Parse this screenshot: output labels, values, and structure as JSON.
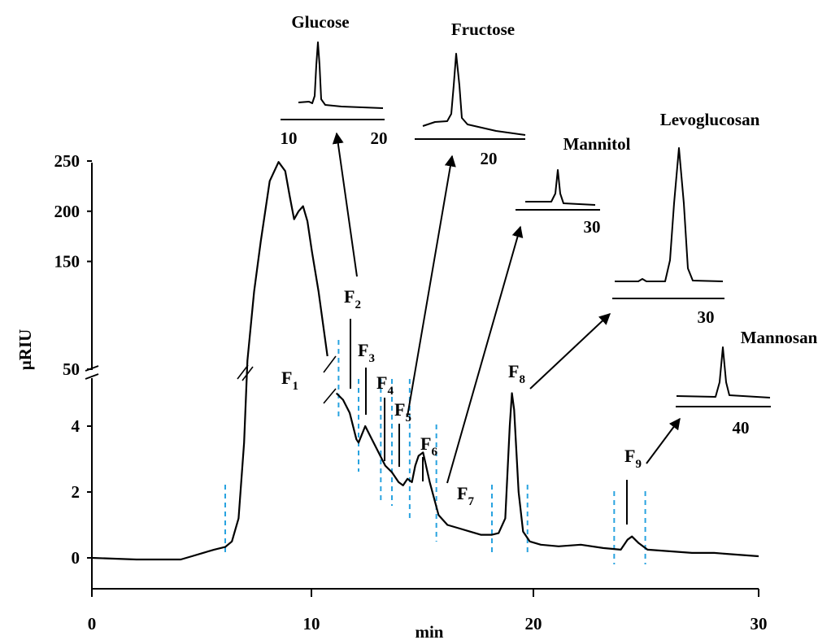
{
  "chart_data": {
    "type": "line",
    "xlabel": "min",
    "ylabel": "µRIU",
    "xlim": [
      0,
      30
    ],
    "x_ticks": [
      "0",
      "10",
      "20",
      "30"
    ],
    "y_ticks_lower": [
      "0",
      "2",
      "4"
    ],
    "y_ticks_upper": [
      "50",
      "150",
      "200",
      "250"
    ],
    "y_axis_break": "between 4 and 50 µRIU",
    "series": [
      {
        "x": [
          0,
          2,
          4,
          4.5,
          5,
          5.5,
          6,
          6.3,
          6.6,
          6.85,
          7.0,
          7.3,
          7.6,
          8.0,
          8.4,
          8.7,
          8.9,
          9.1,
          9.3,
          9.5,
          9.7,
          9.9,
          10.2,
          10.6,
          11.0,
          11.3,
          11.6,
          11.9,
          12.0,
          12.3,
          12.6,
          12.9,
          13.2,
          13.5,
          13.8,
          14.0,
          14.2,
          14.4,
          14.55,
          14.7,
          14.9,
          15.2,
          15.6,
          16.0,
          16.5,
          17.0,
          17.5,
          18.0,
          18.3,
          18.6,
          18.8,
          18.9,
          19.0,
          19.2,
          19.4,
          19.7,
          20.2,
          21,
          22,
          23,
          23.8,
          24.1,
          24.3,
          24.6,
          25.0,
          26,
          27,
          28,
          29,
          30
        ],
        "y": [
          0,
          -0.05,
          -0.05,
          0.05,
          0.15,
          0.25,
          0.33,
          0.5,
          1.2,
          3.5,
          70,
          120,
          170,
          230,
          249,
          240,
          215,
          192,
          200,
          205,
          190,
          160,
          120,
          80,
          5.0,
          4.8,
          4.4,
          3.6,
          3.5,
          4.0,
          3.6,
          3.2,
          2.8,
          2.6,
          2.3,
          2.2,
          2.4,
          2.3,
          2.8,
          3.1,
          3.2,
          2.3,
          1.3,
          1.0,
          0.9,
          0.8,
          0.7,
          0.7,
          0.75,
          1.2,
          4.0,
          5.0,
          4.5,
          2.0,
          0.8,
          0.5,
          0.4,
          0.35,
          0.4,
          0.3,
          0.25,
          0.55,
          0.65,
          0.45,
          0.25,
          0.2,
          0.15,
          0.15,
          0.1,
          0.05
        ]
      }
    ],
    "fraction_cut_lines_min": [
      6.0,
      11.1,
      12.0,
      13.0,
      13.5,
      14.3,
      15.5,
      18.0,
      19.6,
      23.5,
      24.9
    ],
    "fractions": [
      {
        "label": "F",
        "sub": "1"
      },
      {
        "label": "F",
        "sub": "2"
      },
      {
        "label": "F",
        "sub": "3"
      },
      {
        "label": "F",
        "sub": "4"
      },
      {
        "label": "F",
        "sub": "5"
      },
      {
        "label": "F",
        "sub": "6"
      },
      {
        "label": "F",
        "sub": "7"
      },
      {
        "label": "F",
        "sub": "8"
      },
      {
        "label": "F",
        "sub": "9"
      }
    ],
    "insets": [
      {
        "title": "Glucose",
        "ticks": [
          "10",
          "20"
        ]
      },
      {
        "title": "Fructose",
        "ticks": [
          "20"
        ]
      },
      {
        "title": "Mannitol",
        "ticks": [
          "30"
        ]
      },
      {
        "title": "Levoglucosan",
        "ticks": [
          "30"
        ]
      },
      {
        "title": "Mannosan",
        "ticks": [
          "40"
        ]
      }
    ],
    "colors": {
      "trace": "#000000",
      "cut_lines": "#29a3e0"
    }
  }
}
